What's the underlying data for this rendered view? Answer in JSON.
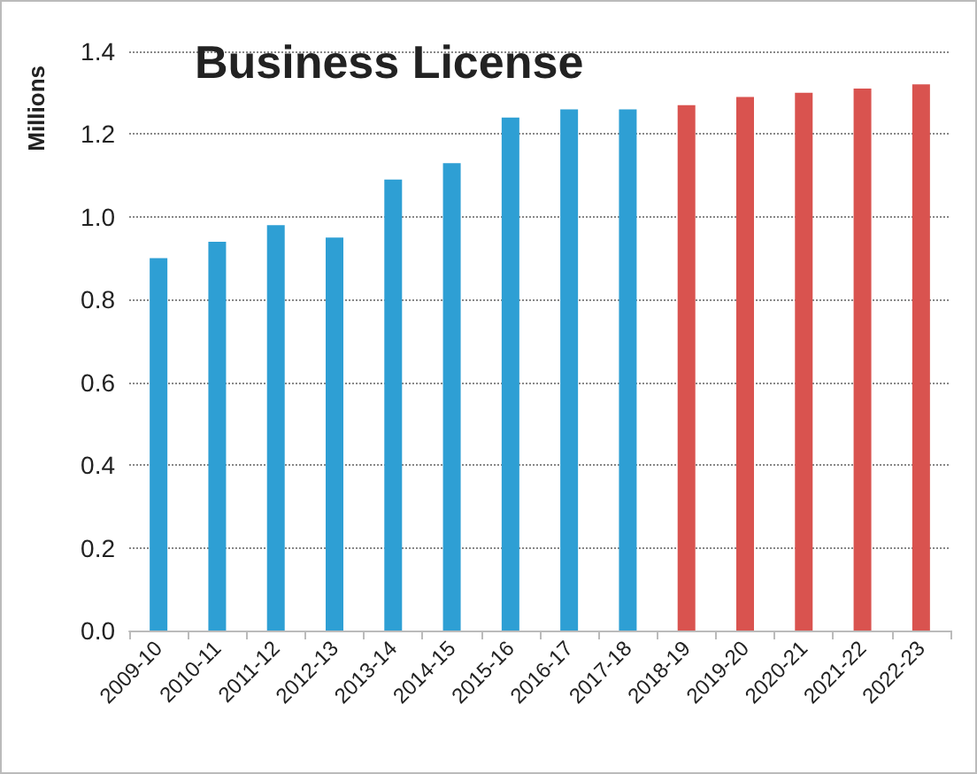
{
  "chart_data": {
    "type": "bar",
    "title": "Business License",
    "ylabel": "Millions",
    "categories": [
      "2009-10",
      "2010-11",
      "2011-12",
      "2012-13",
      "2013-14",
      "2014-15",
      "2015-16",
      "2016-17",
      "2017-18",
      "2018-19",
      "2019-20",
      "2020-21",
      "2021-22",
      "2022-23"
    ],
    "values": [
      0.9,
      0.94,
      0.98,
      0.95,
      1.09,
      1.13,
      1.24,
      1.26,
      1.26,
      1.27,
      1.29,
      1.3,
      1.31,
      1.32
    ],
    "colors": [
      "#2e9fd4",
      "#2e9fd4",
      "#2e9fd4",
      "#2e9fd4",
      "#2e9fd4",
      "#2e9fd4",
      "#2e9fd4",
      "#2e9fd4",
      "#2e9fd4",
      "#d9534f",
      "#d9534f",
      "#d9534f",
      "#d9534f",
      "#d9534f"
    ],
    "ylim": [
      0,
      1.4
    ],
    "yticks": [
      {
        "value": 0,
        "label": "0.0"
      },
      0.2,
      0.4,
      0.6,
      0.8,
      {
        "value": 1,
        "label": "1.0"
      },
      1.2,
      1.4
    ],
    "grid": "y"
  }
}
